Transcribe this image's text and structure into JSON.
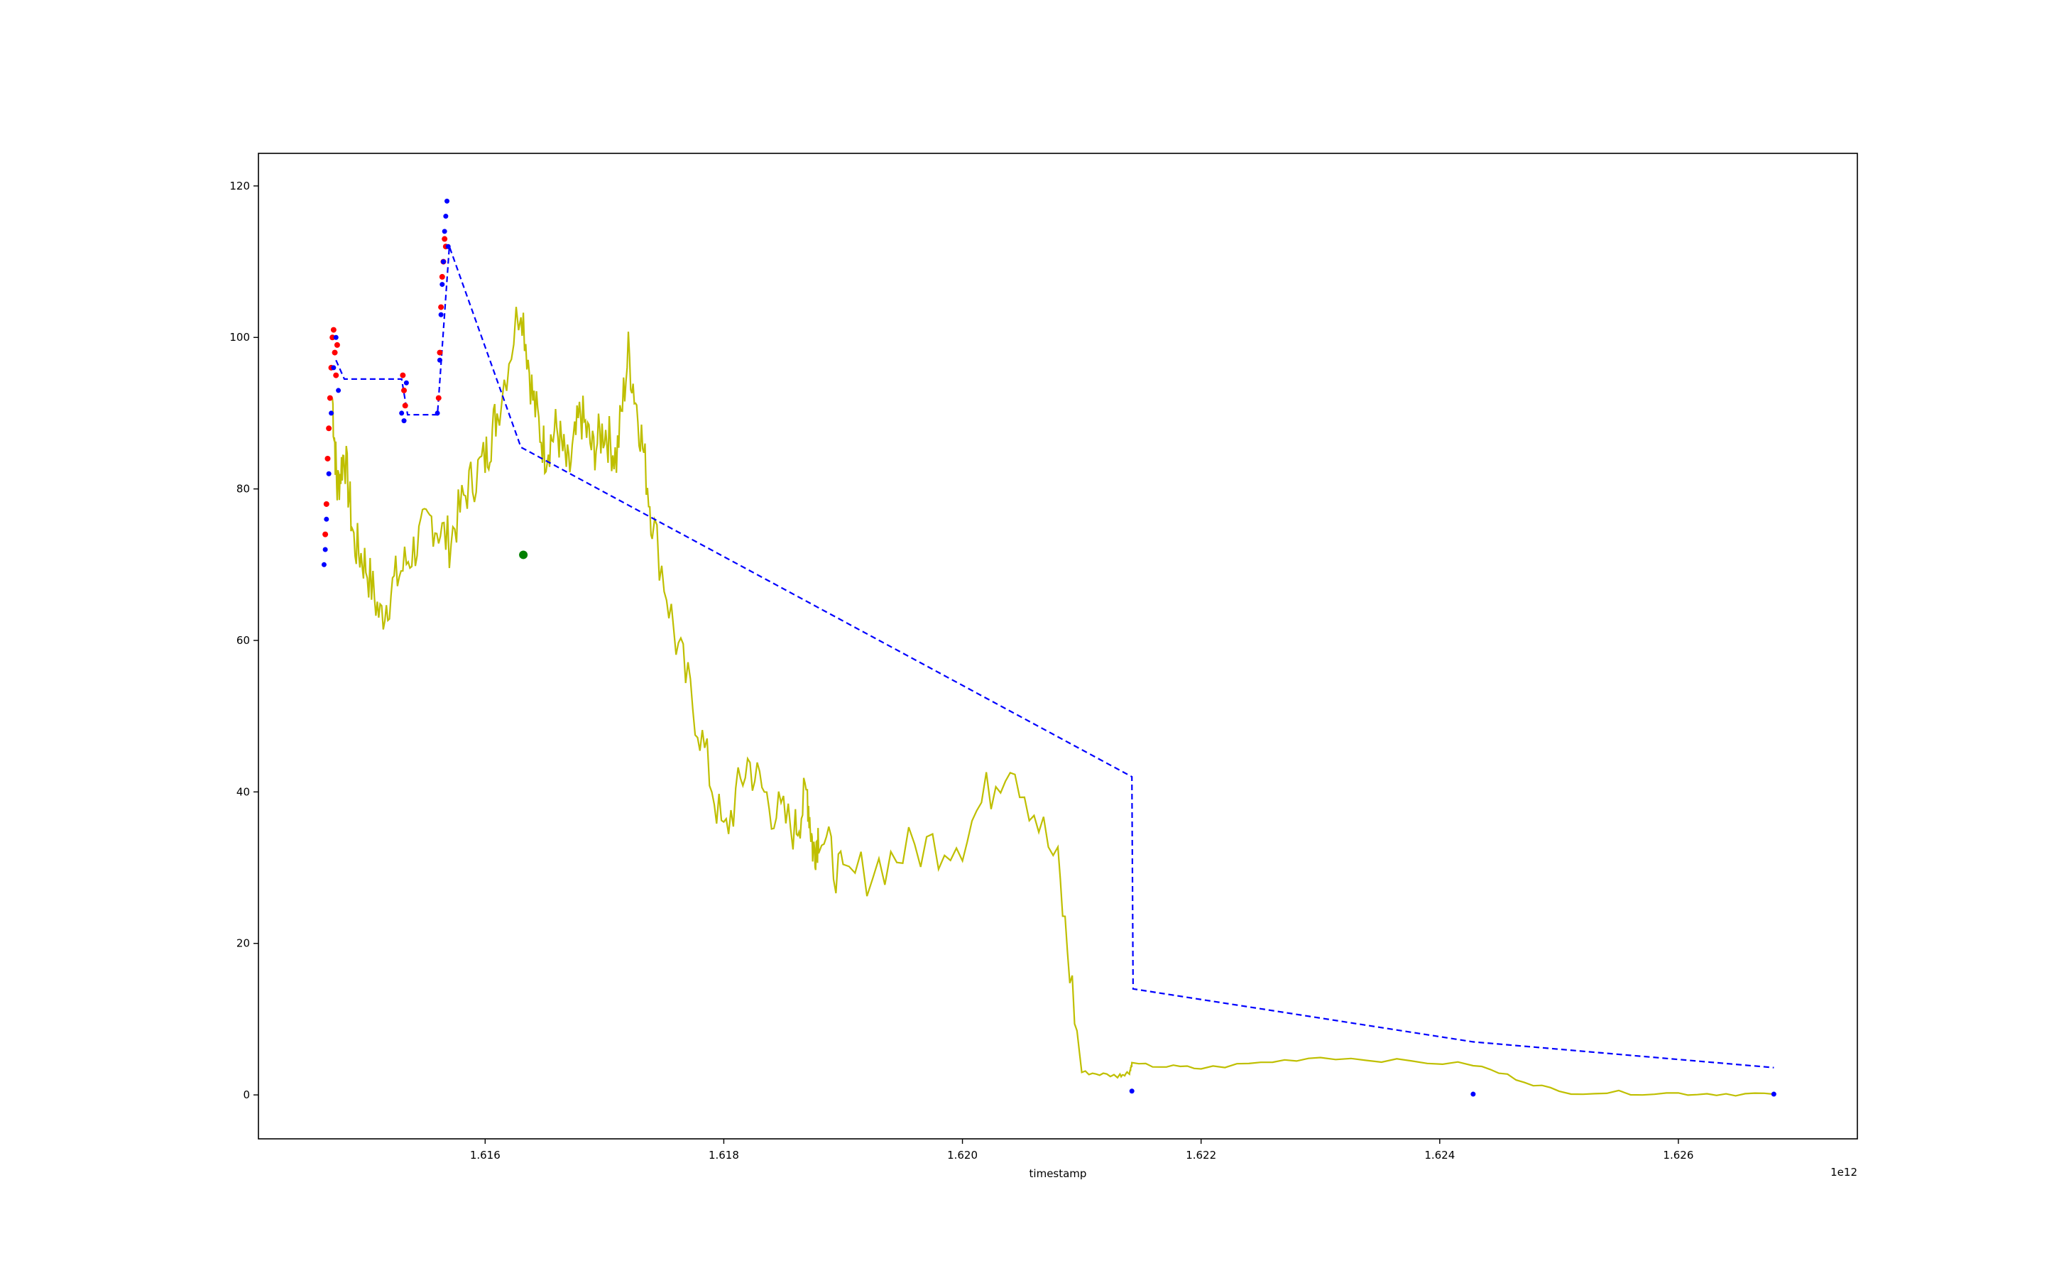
{
  "chart_data": {
    "type": "line",
    "title": "",
    "xlabel": "timestamp",
    "ylabel": "",
    "x_offset_label": "1e12",
    "xlim": [
      1.6141,
      1.6275
    ],
    "ylim": [
      -5.8,
      124.3
    ],
    "x_ticks": [
      1.616,
      1.618,
      1.62,
      1.622,
      1.624,
      1.626
    ],
    "x_tick_labels": [
      "1.616",
      "1.618",
      "1.620",
      "1.622",
      "1.624",
      "1.626"
    ],
    "y_ticks": [
      0,
      20,
      40,
      60,
      80,
      100,
      120
    ],
    "y_tick_labels": [
      "0",
      "20",
      "40",
      "60",
      "80",
      "100",
      "120"
    ],
    "grid": false,
    "legend": "none",
    "colors": {
      "price": "#bfbf00",
      "trend": "#0000ff",
      "red_markers": "#ff0000",
      "blue_markers": "#0000ff",
      "green_marker": "#008000"
    },
    "series": [
      {
        "style": "yellow-solid-line",
        "x": [
          1.61472,
          1.61476,
          1.61482,
          1.6149,
          1.615,
          1.61512,
          1.61525,
          1.6154,
          1.61555,
          1.6157,
          1.61585,
          1.616,
          1.6161,
          1.6163,
          1.6164,
          1.6165,
          1.6166,
          1.6167,
          1.6168,
          1.6169,
          1.617,
          1.6171,
          1.6172,
          1.6173,
          1.6174,
          1.6176,
          1.6178,
          1.618,
          1.6182,
          1.6184,
          1.6186,
          1.6187,
          1.61875,
          1.6188,
          1.619,
          1.6195,
          1.62,
          1.6204,
          1.6208,
          1.621,
          1.6213,
          1.6214,
          1.62142,
          1.622,
          1.623,
          1.62428,
          1.625,
          1.626,
          1.6268
        ],
        "y": [
          92,
          80,
          85,
          73,
          70,
          63,
          68,
          72,
          76,
          73,
          80,
          84,
          90,
          105,
          92,
          85,
          88,
          82,
          90,
          85,
          88,
          84,
          98,
          88,
          76,
          60,
          48,
          34,
          44,
          38,
          35,
          40,
          32,
          35,
          28,
          32,
          34,
          45,
          30,
          3,
          2.5,
          3,
          4,
          3.5,
          5,
          4,
          0.4,
          0.2,
          0.1
        ]
      },
      {
        "style": "blue-dashed-line",
        "x": [
          1.61475,
          1.61482,
          1.6153,
          1.61535,
          1.61545,
          1.6156,
          1.6157,
          1.6163,
          1.62142,
          1.62143,
          1.62428,
          1.6268
        ],
        "y": [
          97,
          94.5,
          94.5,
          89.8,
          89.8,
          89.8,
          112,
          85.5,
          42,
          14,
          7,
          3.6
        ]
      },
      {
        "style": "red-markers",
        "x": [
          1.61466,
          1.61467,
          1.61468,
          1.61469,
          1.6147,
          1.61471,
          1.61472,
          1.61473,
          1.61474,
          1.61475,
          1.61476,
          1.61531,
          1.61532,
          1.61533,
          1.61561,
          1.61562,
          1.61563,
          1.61564,
          1.61565,
          1.61566,
          1.61567
        ],
        "y": [
          74,
          78,
          84,
          88,
          92,
          96,
          100,
          101,
          98,
          95,
          99,
          95,
          93,
          91,
          92,
          98,
          104,
          108,
          110,
          113,
          112
        ]
      },
      {
        "style": "blue-markers",
        "x": [
          1.61465,
          1.61466,
          1.61467,
          1.61469,
          1.61471,
          1.61473,
          1.61475,
          1.61477,
          1.6153,
          1.61532,
          1.61534,
          1.6156,
          1.61562,
          1.61563,
          1.61564,
          1.61565,
          1.61566,
          1.61567,
          1.61568,
          1.61569,
          1.62142,
          1.62428,
          1.6268
        ],
        "y": [
          70,
          72,
          76,
          82,
          90,
          96,
          100,
          93,
          90,
          89,
          94,
          90,
          97,
          103,
          107,
          110,
          114,
          116,
          118,
          112,
          0.5,
          0.1,
          0.1
        ]
      },
      {
        "style": "green-marker",
        "x": [
          1.61632
        ],
        "y": [
          71.3
        ]
      }
    ]
  }
}
